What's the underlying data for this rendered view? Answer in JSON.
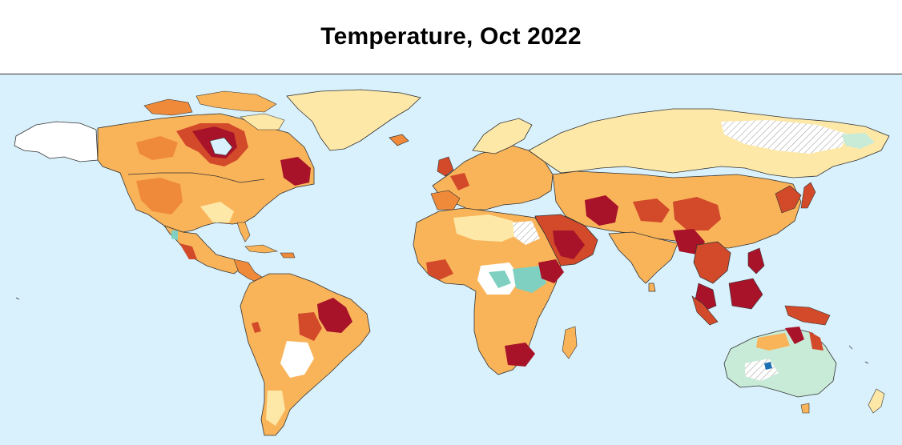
{
  "title": "Temperature, Oct 2022",
  "colors": {
    "ocean": "#d9f1fc",
    "land_neutral": "#ffffff",
    "warm_light": "#fde8a8",
    "warm_mid": "#f9b45a",
    "warm_orange": "#ef8a3a",
    "hot_red": "#d24a2a",
    "extreme": "#a8132a",
    "cool_light": "#c8ebd8",
    "cool_mid": "#7fd0c0",
    "cold": "#1f6fb4",
    "border": "#333333"
  }
}
